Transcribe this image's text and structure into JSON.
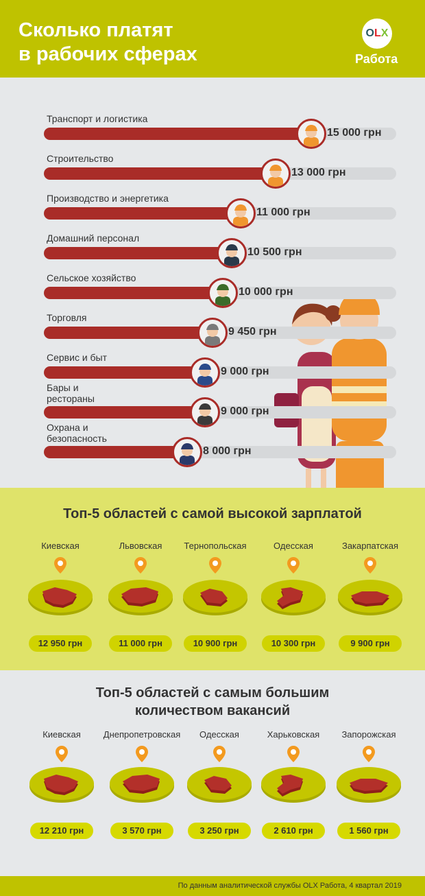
{
  "header": {
    "title_line1": "Сколько платят",
    "title_line2": "в рабочих сферах",
    "logo_o": "O",
    "logo_l": "L",
    "logo_x": "X",
    "logo_sub": "Работа"
  },
  "chart_data": [
    {
      "type": "bar",
      "categories": [
        "Транспорт и логистика",
        "Строительство",
        "Производство и энергетика",
        "Домашний персонал",
        "Сельское хозяйство",
        "Торговля",
        "Сервис и быт",
        "Бары и рестораны",
        "Охрана и безопасность"
      ],
      "values": [
        15000,
        13000,
        11000,
        10500,
        10000,
        9450,
        9000,
        9000,
        8000
      ],
      "value_labels": [
        "15 000 грн",
        "13 000 грн",
        "11 000 грн",
        "10 500 грн",
        "10 000 грн",
        "9 450 грн",
        "9 000 грн",
        "9 000 грн",
        "8 000 грн"
      ]
    },
    {
      "type": "table",
      "title": "Топ-5 областей с самой высокой зарплатой",
      "categories": [
        "Киевская",
        "Львовская",
        "Тернопольская",
        "Одесская",
        "Закарпатская"
      ],
      "values": [
        12950,
        11000,
        10900,
        10300,
        9900
      ],
      "value_labels": [
        "12 950 грн",
        "11 000 грн",
        "10 900 грн",
        "10 300 грн",
        "9 900 грн"
      ]
    },
    {
      "type": "table",
      "title_line1": "Топ-5 областей с самым большим",
      "title_line2": "количеством вакансий",
      "categories": [
        "Киевская",
        "Днепропетровская",
        "Одесская",
        "Харьковская",
        "Запорожская"
      ],
      "values": [
        12210,
        3570,
        3250,
        2610,
        1560
      ],
      "value_labels": [
        "12 210 грн",
        "3 570 грн",
        "3 250 грн",
        "2 610 грн",
        "1 560 грн"
      ]
    }
  ],
  "colors": {
    "header": "#bfc200",
    "bar": "#a92c28",
    "track": "#d6d8da",
    "section2_bg": "#dfe36a",
    "pin": "#f39a1f",
    "disk": "#c4c600",
    "region": "#8e1f1a"
  },
  "footer": {
    "text": "По данным аналитической службы OLX Работа, 4 квартал 2019"
  }
}
